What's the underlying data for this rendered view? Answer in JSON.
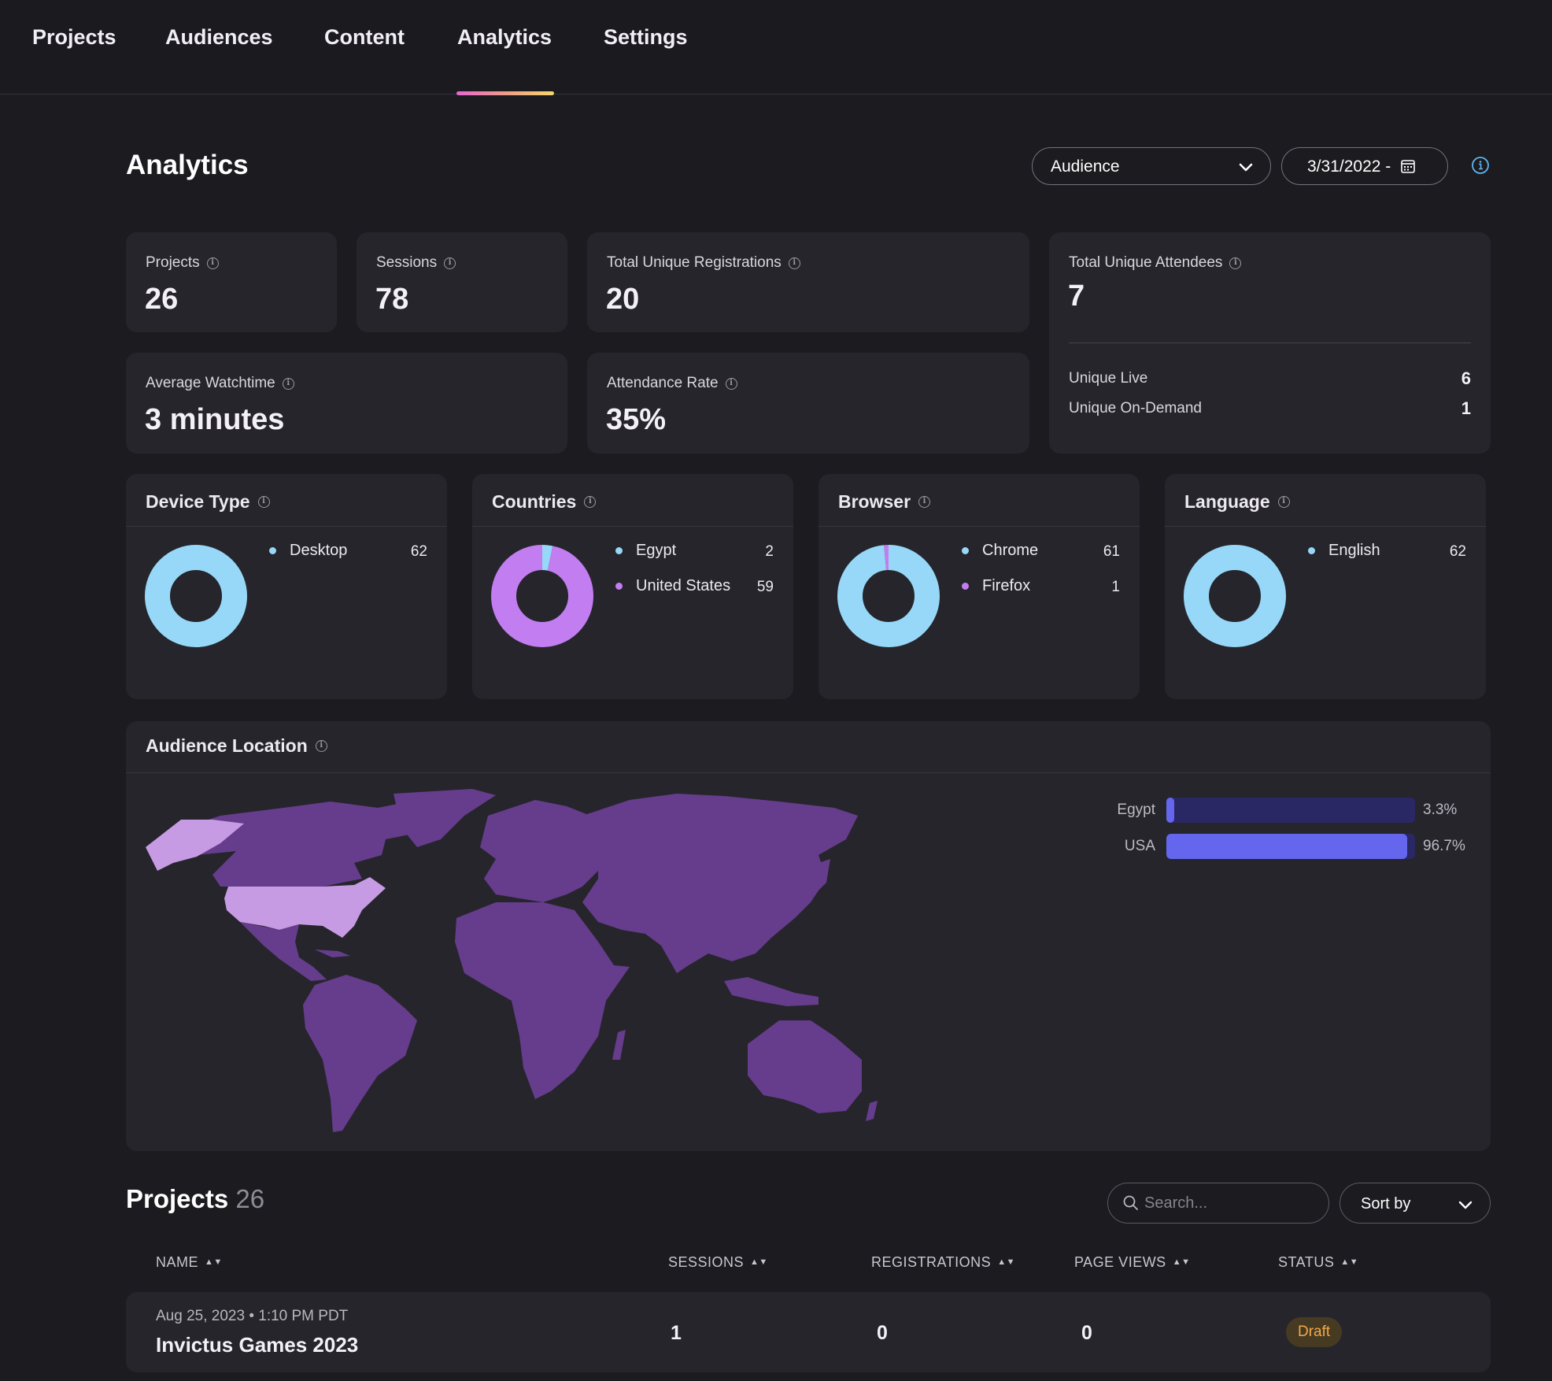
{
  "nav": {
    "tabs": [
      {
        "label": "Projects",
        "active": false
      },
      {
        "label": "Audiences",
        "active": false
      },
      {
        "label": "Content",
        "active": false
      },
      {
        "label": "Analytics",
        "active": true
      },
      {
        "label": "Settings",
        "active": false
      }
    ]
  },
  "header": {
    "title": "Analytics",
    "audience_select": "Audience",
    "date_range": "3/31/2022 -"
  },
  "stats": {
    "projects": {
      "label": "Projects",
      "value": "26"
    },
    "sessions": {
      "label": "Sessions",
      "value": "78"
    },
    "registrations": {
      "label": "Total Unique Registrations",
      "value": "20"
    },
    "attendees": {
      "label": "Total Unique Attendees",
      "value": "7",
      "live_label": "Unique Live",
      "live_value": "6",
      "ondemand_label": "Unique On-Demand",
      "ondemand_value": "1"
    },
    "watchtime": {
      "label": "Average Watchtime",
      "value": "3 minutes"
    },
    "attendance": {
      "label": "Attendance Rate",
      "value": "35%"
    }
  },
  "breakdowns": [
    {
      "title": "Device Type",
      "items": [
        {
          "label": "Desktop",
          "value": 62,
          "color": "#97d8f8"
        }
      ]
    },
    {
      "title": "Countries",
      "items": [
        {
          "label": "Egypt",
          "value": 2,
          "color": "#97d8f8"
        },
        {
          "label": "United States",
          "value": 59,
          "color": "#c27df0"
        }
      ]
    },
    {
      "title": "Browser",
      "items": [
        {
          "label": "Chrome",
          "value": 61,
          "color": "#97d8f8"
        },
        {
          "label": "Firefox",
          "value": 1,
          "color": "#c27df0"
        }
      ]
    },
    {
      "title": "Language",
      "items": [
        {
          "label": "English",
          "value": 62,
          "color": "#97d8f8"
        }
      ]
    }
  ],
  "audience_location": {
    "title": "Audience Location",
    "colors": {
      "land": "#663c8c",
      "highlight": "#c79be3",
      "bar_track": "#2a2864",
      "bar_fill": "#6467ee"
    },
    "bars": [
      {
        "label": "Egypt",
        "percent": 3.3,
        "display": "3.3%"
      },
      {
        "label": "USA",
        "percent": 96.7,
        "display": "96.7%"
      }
    ]
  },
  "projects": {
    "title": "Projects",
    "count": "26",
    "search_placeholder": "Search...",
    "sort_label": "Sort by",
    "columns": [
      "NAME",
      "SESSIONS",
      "REGISTRATIONS",
      "PAGE VIEWS",
      "STATUS"
    ],
    "rows": [
      {
        "date": "Aug 25, 2023 • 1:10 PM PDT",
        "name": "Invictus Games 2023",
        "sessions": "1",
        "registrations": "0",
        "page_views": "0",
        "status": "Draft"
      }
    ]
  },
  "colors": {
    "accent_blue": "#97d8f8",
    "accent_purple": "#c27df0",
    "draft_text": "#f0a948",
    "info_icon": "#5fb6f0"
  }
}
